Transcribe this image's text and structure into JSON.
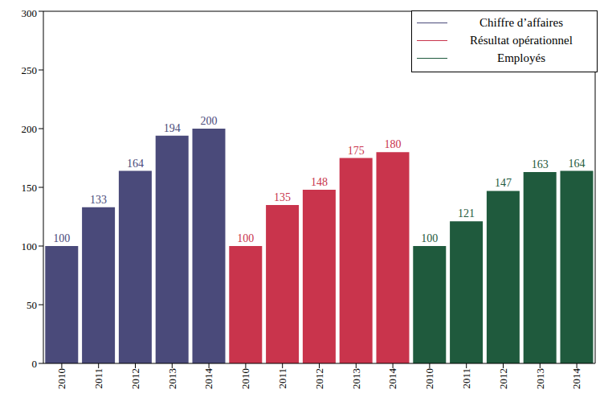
{
  "chart_data": {
    "type": "bar",
    "categories": [
      "2010",
      "2011",
      "2012",
      "2013",
      "2014",
      "2010",
      "2011",
      "2012",
      "2013",
      "2014",
      "2010",
      "2011",
      "2012",
      "2013",
      "2014"
    ],
    "series": [
      {
        "name": "Chiffre d’affaires",
        "color": "#4a4a7a",
        "values": [
          100,
          133,
          164,
          194,
          200,
          null,
          null,
          null,
          null,
          null,
          null,
          null,
          null,
          null,
          null
        ]
      },
      {
        "name": "Résultat opérationnel",
        "color": "#c9344c",
        "values": [
          null,
          null,
          null,
          null,
          null,
          100,
          135,
          148,
          175,
          180,
          null,
          null,
          null,
          null,
          null
        ]
      },
      {
        "name": "Employés",
        "color": "#1f5a3d",
        "values": [
          null,
          null,
          null,
          null,
          null,
          null,
          null,
          null,
          null,
          null,
          100,
          121,
          147,
          163,
          164
        ]
      }
    ],
    "ylim": [
      0,
      300
    ],
    "yticks": [
      0,
      50,
      100,
      150,
      200,
      250,
      300
    ],
    "data_labels": true,
    "legend": "upper right",
    "grid": false
  }
}
